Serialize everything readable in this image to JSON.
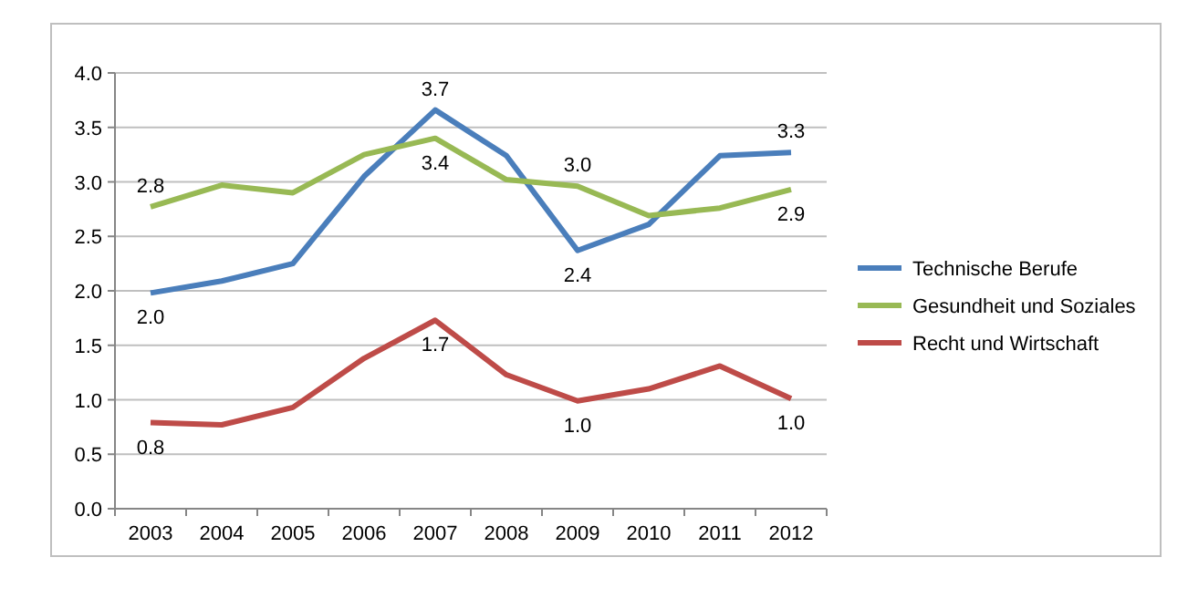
{
  "chart_data": {
    "type": "line",
    "categories": [
      "2003",
      "2004",
      "2005",
      "2006",
      "2007",
      "2008",
      "2009",
      "2010",
      "2011",
      "2012"
    ],
    "ylim": [
      0,
      4
    ],
    "yticks": [
      {
        "value": 0,
        "label": "0.0"
      },
      {
        "value": 0.5,
        "label": "0.5"
      },
      {
        "value": 1,
        "label": "1.0"
      },
      {
        "value": 1.5,
        "label": "1.5"
      },
      {
        "value": 2,
        "label": "2.0"
      },
      {
        "value": 2.5,
        "label": "2.5"
      },
      {
        "value": 3,
        "label": "3.0"
      },
      {
        "value": 3.5,
        "label": "3.5"
      },
      {
        "value": 4,
        "label": "4.0"
      }
    ],
    "grid": "y",
    "legend": "right",
    "marker": "none",
    "series": [
      {
        "name": "Technische Berufe",
        "color": "#4a7ebb",
        "values": [
          1.98,
          2.09,
          2.25,
          3.05,
          3.66,
          3.24,
          2.37,
          2.61,
          3.24,
          3.27
        ],
        "value_labels": [
          "2.0",
          null,
          null,
          null,
          "3.7",
          null,
          "2.4",
          null,
          null,
          "3.3"
        ]
      },
      {
        "name": "Gesundheit und Soziales",
        "color": "#98b954",
        "values": [
          2.77,
          2.97,
          2.9,
          3.25,
          3.4,
          3.02,
          2.96,
          2.69,
          2.76,
          2.93
        ],
        "value_labels": [
          "2.8",
          null,
          null,
          null,
          "3.4",
          null,
          "3.0",
          null,
          null,
          "2.9"
        ]
      },
      {
        "name": "Recht und Wirtschaft",
        "color": "#be4b48",
        "values": [
          0.79,
          0.77,
          0.93,
          1.38,
          1.73,
          1.23,
          0.99,
          1.1,
          1.31,
          1.01
        ],
        "value_labels": [
          "0.8",
          null,
          null,
          null,
          "1.7",
          null,
          "1.0",
          null,
          null,
          "1.0"
        ]
      }
    ]
  }
}
